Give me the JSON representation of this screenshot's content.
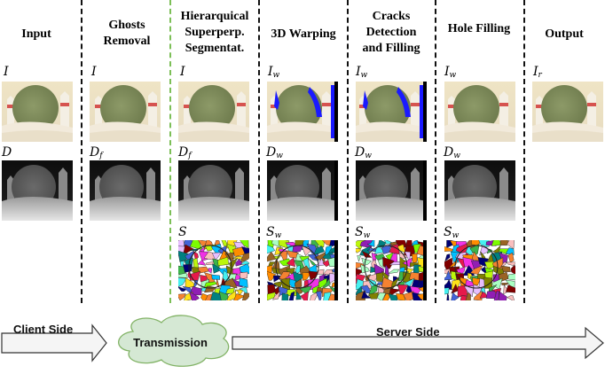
{
  "stages": [
    {
      "title": "Input"
    },
    {
      "title": "Ghosts\nRemoval"
    },
    {
      "title": "Hierarquical\nSuperperp.\nSegmentat."
    },
    {
      "title": "3D Warping"
    },
    {
      "title": "Cracks\nDetection\nand Filling"
    },
    {
      "title": "Hole Filling"
    },
    {
      "title": "Output"
    }
  ],
  "rows": {
    "image": {
      "symbol": "I"
    },
    "depth": {
      "symbol": "D"
    },
    "seg": {
      "symbol": "S"
    }
  },
  "symbols": {
    "I": "I",
    "Iw": "I",
    "Iw_sub": "w",
    "Ir": "I",
    "Ir_sub": "r",
    "D": "D",
    "Df": "D",
    "Df_sub": "f",
    "Dw": "D",
    "Dw_sub": "w",
    "S": "S",
    "Sw": "S",
    "Sw_sub": "w"
  },
  "flow": {
    "client": "Client Side",
    "transmission": "Transmission",
    "server": "Server Side"
  },
  "colors": {
    "divider": "#111111",
    "divider_segmentation": "#7cbf57",
    "cloud_fill": "#d5e8d4",
    "cloud_stroke": "#82b366",
    "arrow_fill": "#f5f5f5",
    "hole_blue": "#1a1aff"
  }
}
